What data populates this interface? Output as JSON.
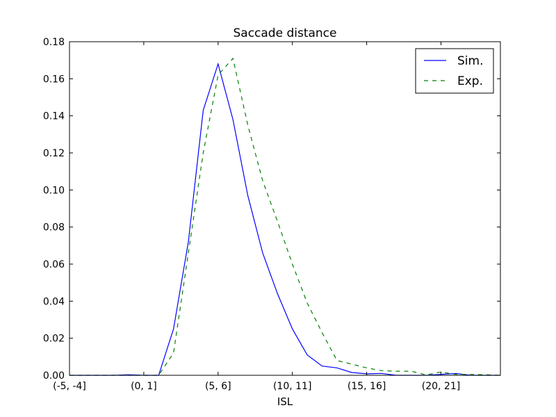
{
  "chart_data": {
    "type": "line",
    "title": "Saccade distance",
    "xlabel": "ISL",
    "ylabel": "",
    "xlim": [
      -5,
      24
    ],
    "ylim": [
      0,
      0.18
    ],
    "x_tick_positions": [
      -5,
      0,
      5,
      10,
      15,
      20
    ],
    "x_tick_labels": [
      "(-5, -4]",
      "(0, 1]",
      "(5, 6]",
      "(10, 11]",
      "(15, 16]",
      "(20, 21]"
    ],
    "y_ticks": [
      0.0,
      0.02,
      0.04,
      0.06,
      0.08,
      0.1,
      0.12,
      0.14,
      0.16,
      0.18
    ],
    "y_tick_labels": [
      "0.00",
      "0.02",
      "0.04",
      "0.06",
      "0.08",
      "0.10",
      "0.12",
      "0.14",
      "0.16",
      "0.18"
    ],
    "legend_position": "top-right",
    "series": [
      {
        "name": "Sim.",
        "color": "#0000ff",
        "style": "solid",
        "x": [
          -5,
          -4,
          -3,
          -2,
          -1,
          0,
          1,
          2,
          3,
          4,
          5,
          6,
          7,
          8,
          9,
          10,
          11,
          12,
          13,
          14,
          15,
          16,
          17,
          18,
          19,
          20,
          21,
          22,
          23,
          24
        ],
        "y": [
          0,
          0,
          0,
          0,
          0.0003,
          0,
          0,
          0.025,
          0.072,
          0.143,
          0.168,
          0.138,
          0.097,
          0.066,
          0.044,
          0.025,
          0.011,
          0.005,
          0.004,
          0.0015,
          0.0008,
          0.001,
          0,
          0,
          0,
          0.0005,
          0.001,
          0,
          0,
          0
        ]
      },
      {
        "name": "Exp.",
        "color": "#008000",
        "style": "dashed",
        "x": [
          -5,
          -4,
          -3,
          -2,
          -1,
          0,
          1,
          2,
          3,
          4,
          5,
          6,
          7,
          8,
          9,
          10,
          11,
          12,
          13,
          14,
          15,
          16,
          17,
          18,
          19,
          20,
          21,
          22,
          23,
          24
        ],
        "y": [
          0,
          0,
          0,
          0,
          0,
          0,
          0,
          0.012,
          0.066,
          0.12,
          0.162,
          0.171,
          0.135,
          0.105,
          0.083,
          0.06,
          0.039,
          0.023,
          0.008,
          0.006,
          0.004,
          0.0025,
          0.0022,
          0.0022,
          0.0002,
          0.0018,
          0.0005,
          0.0005,
          0.0003,
          0
        ]
      }
    ]
  }
}
